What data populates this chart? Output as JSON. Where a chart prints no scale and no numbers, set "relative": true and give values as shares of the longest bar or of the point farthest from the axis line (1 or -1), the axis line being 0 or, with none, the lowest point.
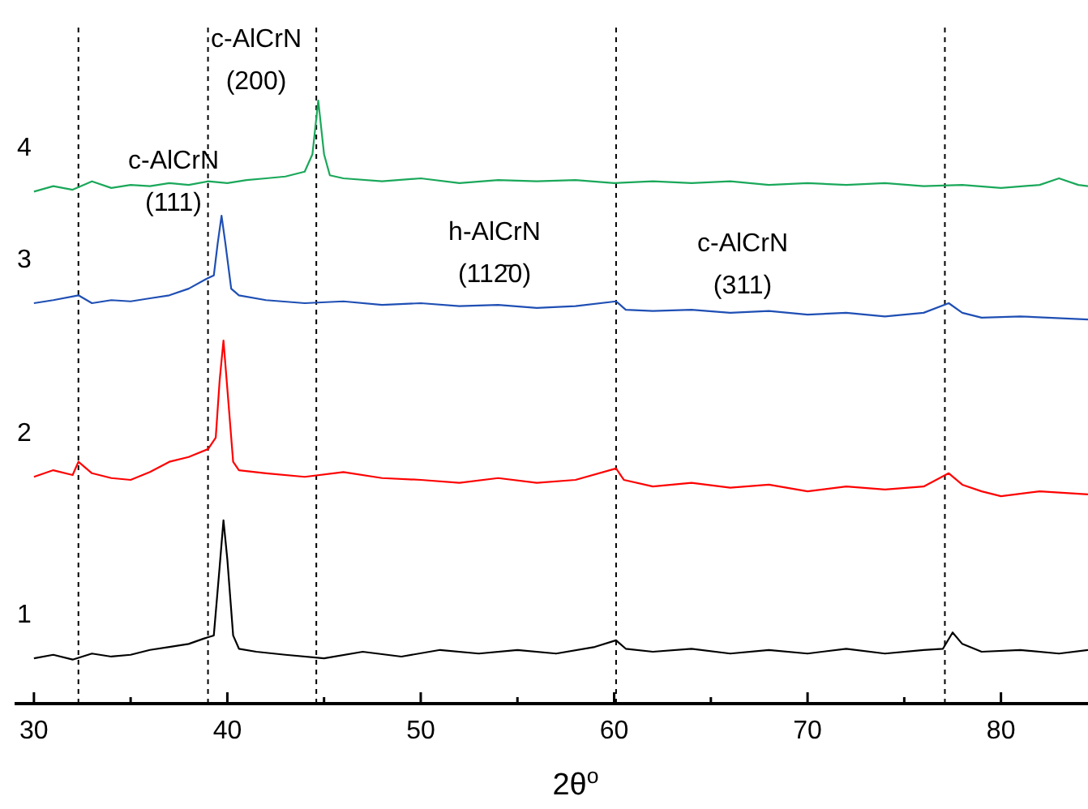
{
  "chart_data": {
    "type": "line",
    "relative": true,
    "xlabel": "2θ$^{o}$",
    "xlim": [
      29,
      84.5
    ],
    "xticks": [
      30,
      {
        "value": 35,
        "label": null
      },
      40,
      {
        "value": 45,
        "label": null
      },
      50,
      {
        "value": 55,
        "label": null
      },
      60,
      {
        "value": 65,
        "label": null
      },
      70,
      {
        "value": 75,
        "label": null
      },
      80
    ],
    "series": [
      {
        "name": "1",
        "color": "#000000",
        "x": [
          30,
          31,
          32,
          33,
          34,
          35,
          36,
          37,
          38,
          38.8,
          39.3,
          39.6,
          39.8,
          40,
          40.3,
          40.6,
          41.5,
          43,
          45,
          47,
          49,
          51,
          53,
          55,
          57,
          59,
          60.1,
          60.6,
          62,
          64,
          66,
          68,
          70,
          72,
          74,
          76,
          77,
          77.5,
          78,
          79,
          81,
          83,
          84.5
        ],
        "values": [
          0.075,
          0.081,
          0.073,
          0.083,
          0.078,
          0.081,
          0.089,
          0.094,
          0.099,
          0.108,
          0.113,
          0.226,
          0.304,
          0.239,
          0.113,
          0.091,
          0.086,
          0.081,
          0.075,
          0.086,
          0.078,
          0.089,
          0.083,
          0.089,
          0.083,
          0.094,
          0.105,
          0.091,
          0.086,
          0.091,
          0.083,
          0.089,
          0.083,
          0.091,
          0.083,
          0.089,
          0.091,
          0.118,
          0.099,
          0.086,
          0.089,
          0.083,
          0.089
        ]
      },
      {
        "name": "2",
        "color": "#ff0000",
        "x": [
          30,
          31,
          32,
          32.3,
          33,
          34,
          35,
          36,
          37,
          38,
          39,
          39.4,
          39.6,
          39.8,
          40,
          40.3,
          40.6,
          42,
          44,
          46,
          48,
          50,
          52,
          54,
          56,
          58,
          60.1,
          60.5,
          62,
          64,
          66,
          68,
          70,
          72,
          74,
          76,
          77.3,
          78,
          79,
          80,
          82,
          84.5
        ],
        "values": [
          0.376,
          0.387,
          0.379,
          0.401,
          0.382,
          0.374,
          0.371,
          0.384,
          0.401,
          0.409,
          0.422,
          0.441,
          0.535,
          0.602,
          0.522,
          0.401,
          0.387,
          0.382,
          0.376,
          0.384,
          0.374,
          0.371,
          0.366,
          0.374,
          0.366,
          0.371,
          0.39,
          0.371,
          0.36,
          0.366,
          0.358,
          0.363,
          0.352,
          0.36,
          0.355,
          0.36,
          0.382,
          0.363,
          0.352,
          0.344,
          0.352,
          0.347
        ]
      },
      {
        "name": "3",
        "color": "#1f4fb4",
        "x": [
          30,
          31,
          32.3,
          33,
          34,
          35,
          36,
          37,
          38,
          38.9,
          39.3,
          39.5,
          39.7,
          39.9,
          40.2,
          40.6,
          42,
          44,
          46,
          48,
          50,
          52,
          54,
          56,
          58,
          60.1,
          60.6,
          62,
          64,
          66,
          68,
          70,
          72,
          74,
          76,
          77.3,
          78,
          79,
          81,
          84.5
        ],
        "values": [
          0.664,
          0.669,
          0.677,
          0.664,
          0.669,
          0.667,
          0.672,
          0.677,
          0.688,
          0.704,
          0.71,
          0.763,
          0.809,
          0.763,
          0.688,
          0.677,
          0.669,
          0.664,
          0.667,
          0.661,
          0.664,
          0.659,
          0.661,
          0.656,
          0.659,
          0.667,
          0.653,
          0.651,
          0.653,
          0.648,
          0.651,
          0.645,
          0.648,
          0.642,
          0.648,
          0.664,
          0.648,
          0.64,
          0.642,
          0.637
        ]
      },
      {
        "name": "4",
        "color": "#1aa85a",
        "x": [
          30,
          31,
          32,
          33,
          34,
          35,
          36,
          37,
          38,
          39,
          40,
          41,
          42,
          43,
          44,
          44.4,
          44.7,
          45,
          45.3,
          46,
          48,
          50,
          52,
          54,
          56,
          58,
          60,
          62,
          64,
          66,
          68,
          70,
          72,
          74,
          76,
          78,
          80,
          82,
          83,
          84,
          84.5
        ],
        "values": [
          0.849,
          0.858,
          0.852,
          0.866,
          0.855,
          0.86,
          0.858,
          0.863,
          0.86,
          0.866,
          0.863,
          0.868,
          0.871,
          0.874,
          0.882,
          0.911,
          1.0,
          0.911,
          0.876,
          0.871,
          0.866,
          0.871,
          0.863,
          0.868,
          0.866,
          0.868,
          0.863,
          0.866,
          0.863,
          0.866,
          0.86,
          0.863,
          0.86,
          0.863,
          0.858,
          0.86,
          0.855,
          0.86,
          0.871,
          0.86,
          0.858
        ]
      }
    ],
    "ref_lines": [
      {
        "axis": "x",
        "value": 32.3,
        "color": "#000000",
        "line_style": "dotted"
      },
      {
        "axis": "x",
        "value": 39,
        "color": "#000000",
        "line_style": "dotted"
      },
      {
        "axis": "x",
        "value": 44.6,
        "color": "#000000",
        "line_style": "dotted"
      },
      {
        "axis": "x",
        "value": 60.1,
        "color": "#000000",
        "line_style": "dotted"
      },
      {
        "axis": "x",
        "value": 77.1,
        "color": "#000000",
        "line_style": "dotted"
      }
    ],
    "annotations": [
      "c-AlCrN\n(200)",
      "c-AlCrN\n(111)",
      "h-AlCrN\n(112̄0)",
      "c-AlCrN\n(311)"
    ]
  }
}
